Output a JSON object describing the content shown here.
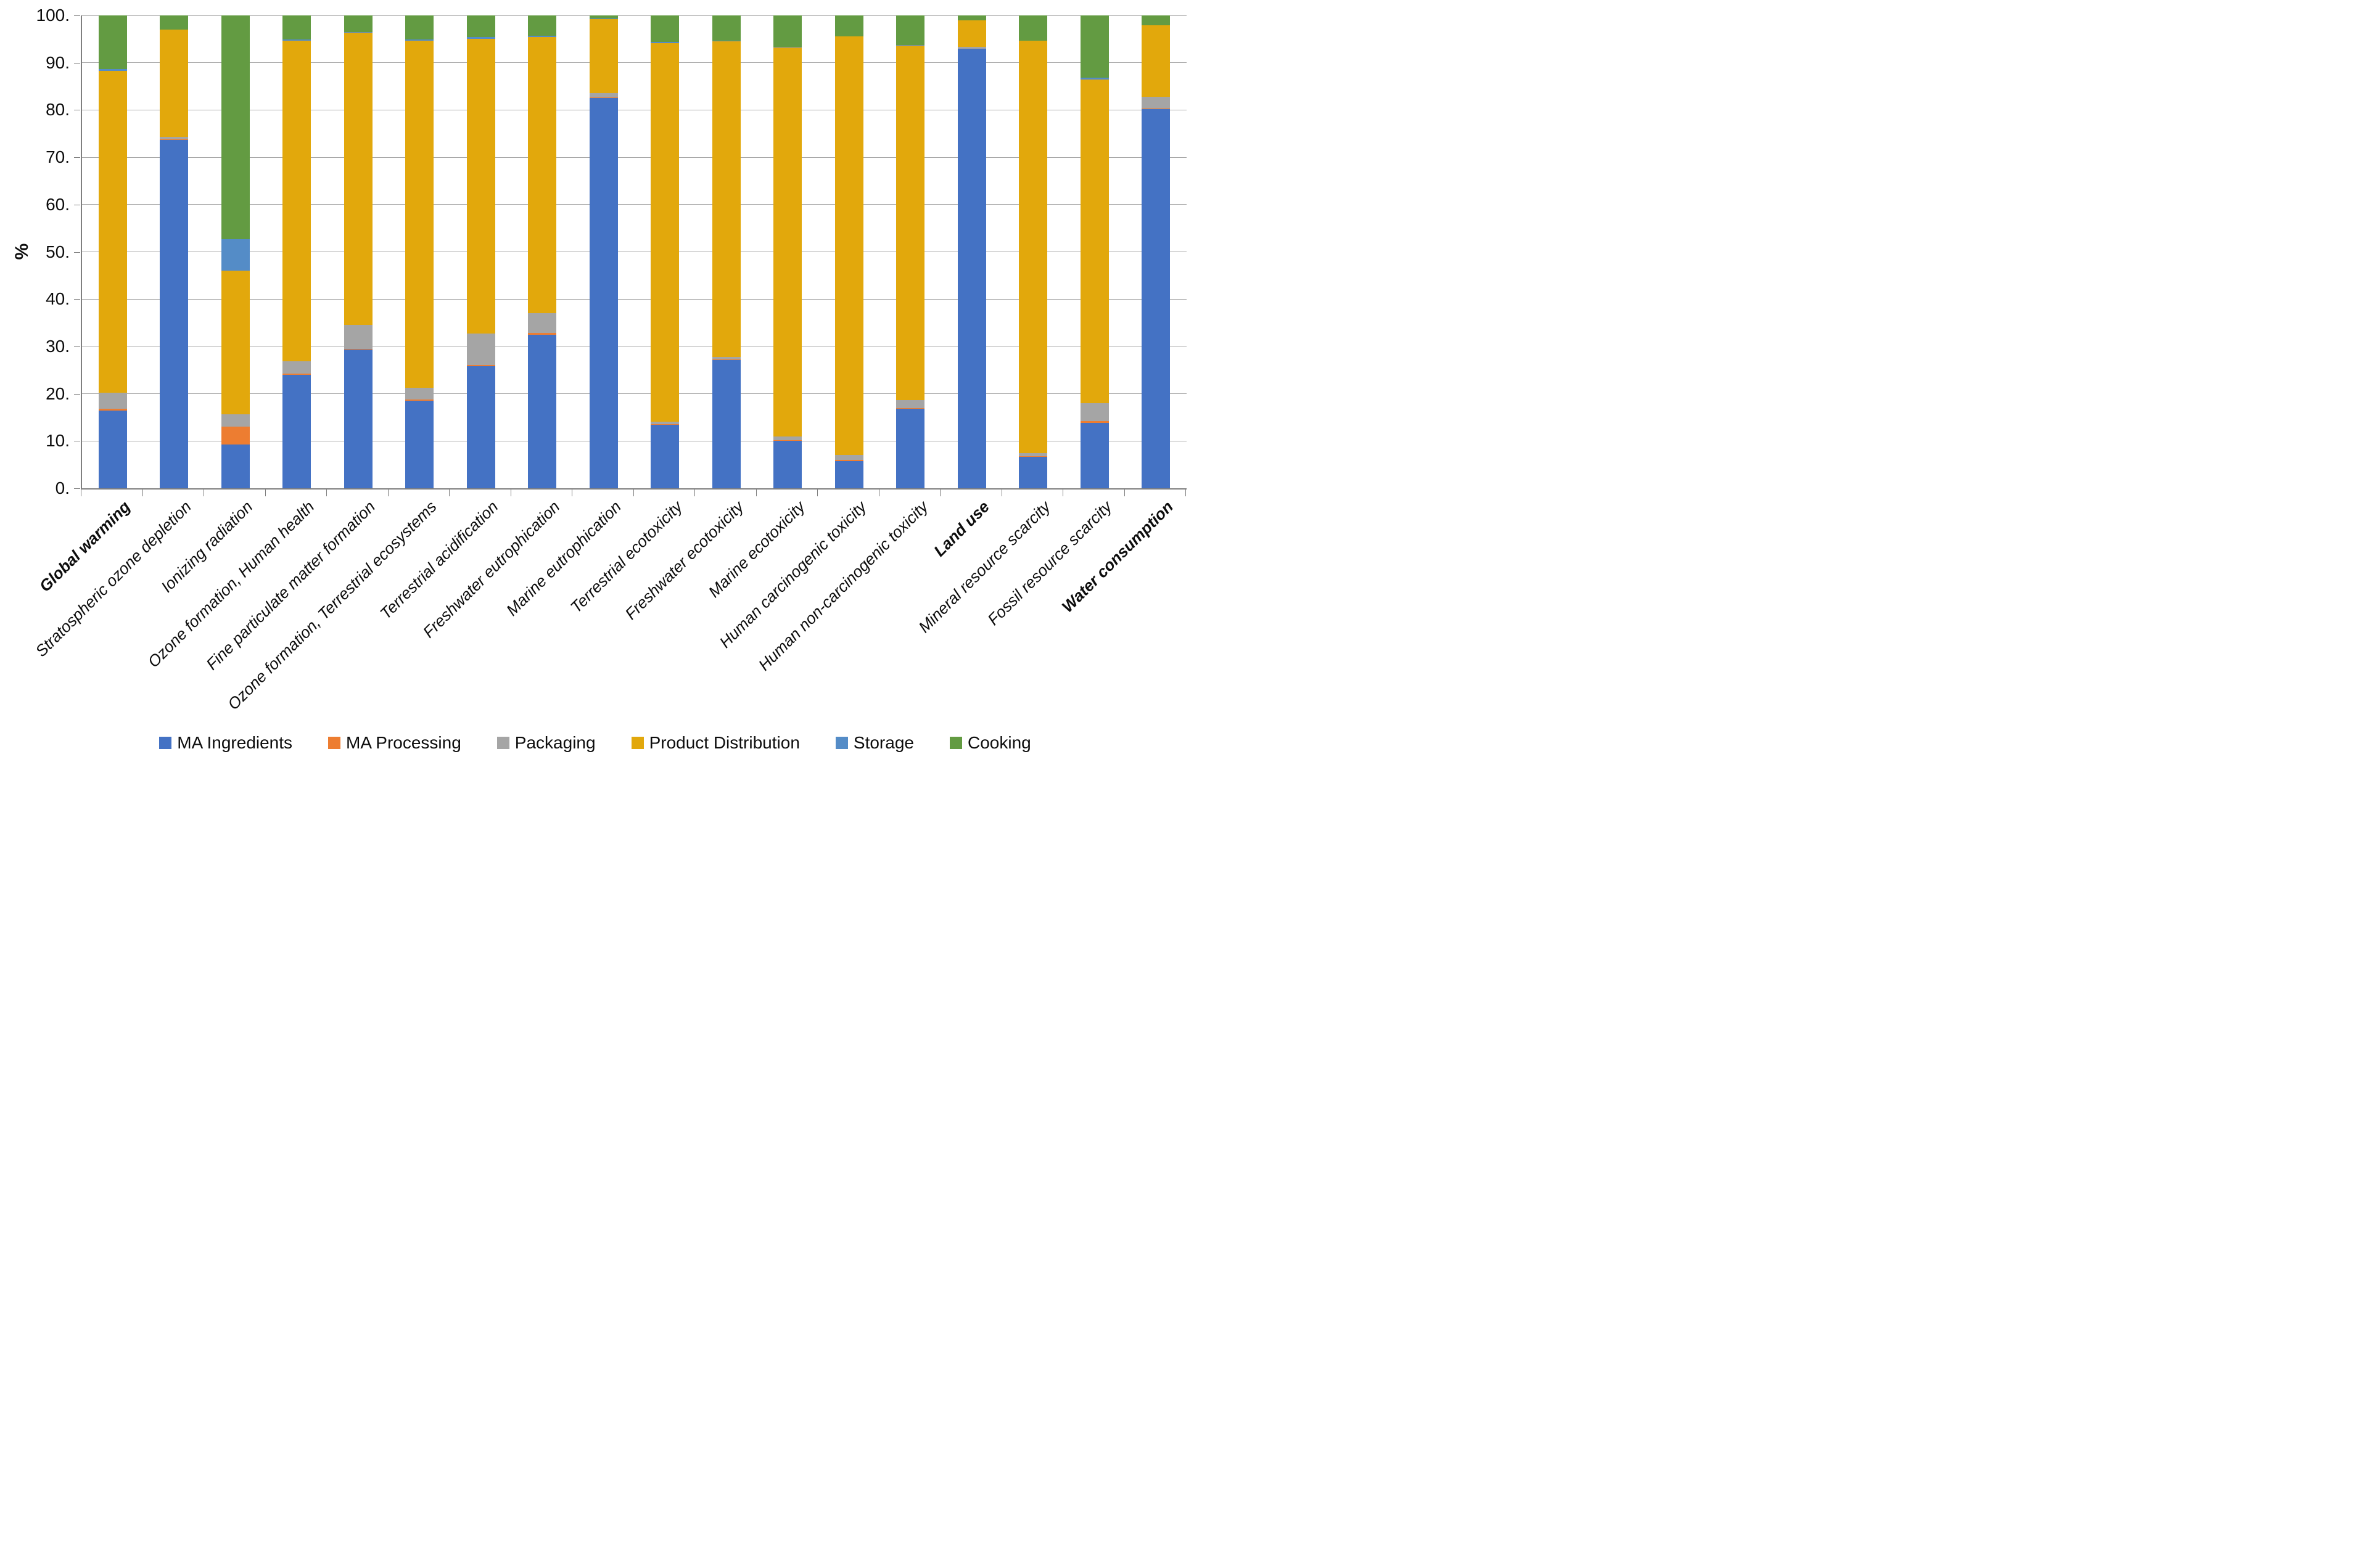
{
  "chart_data": {
    "type": "bar",
    "subtype": "stacked-100-percent",
    "title": "",
    "xlabel": "",
    "ylabel": "%",
    "ylim": [
      0,
      100
    ],
    "ytick_step": 10,
    "ytick_labels": [
      "0.",
      "10.",
      "20.",
      "30.",
      "40.",
      "50.",
      "60.",
      "70.",
      "80.",
      "90.",
      "100."
    ],
    "grid": true,
    "legend_position": "bottom",
    "categories": [
      {
        "label": "Global warming",
        "bold": true
      },
      {
        "label": "Stratospheric ozone depletion",
        "bold": false
      },
      {
        "label": "Ionizing radiation",
        "bold": false
      },
      {
        "label": "Ozone formation, Human health",
        "bold": false
      },
      {
        "label": "Fine particulate matter formation",
        "bold": false
      },
      {
        "label": "Ozone formation, Terrestrial ecosystems",
        "bold": false
      },
      {
        "label": "Terrestrial acidification",
        "bold": false
      },
      {
        "label": "Freshwater eutrophication",
        "bold": false
      },
      {
        "label": "Marine eutrophication",
        "bold": false
      },
      {
        "label": "Terrestrial ecotoxicity",
        "bold": false
      },
      {
        "label": "Freshwater ecotoxicity",
        "bold": false
      },
      {
        "label": "Marine ecotoxicity",
        "bold": false
      },
      {
        "label": "Human carcinogenic toxicity",
        "bold": false
      },
      {
        "label": "Human non-carcinogenic toxicity",
        "bold": false
      },
      {
        "label": "Land use",
        "bold": true
      },
      {
        "label": "Mineral resource scarcity",
        "bold": false
      },
      {
        "label": "Fossil resource scarcity",
        "bold": false
      },
      {
        "label": "Water consumption",
        "bold": true
      }
    ],
    "series": [
      {
        "name": "MA Ingredients",
        "color": "#4472C4",
        "values": [
          16.4,
          73.7,
          9.2,
          24.0,
          29.3,
          18.5,
          25.8,
          32.5,
          82.5,
          13.4,
          27.1,
          10.1,
          5.7,
          16.8,
          93.0,
          6.7,
          13.8,
          80.2
        ]
      },
      {
        "name": "MA Processing",
        "color": "#ED7D31",
        "values": [
          0.4,
          0.1,
          3.8,
          0.2,
          0.2,
          0.3,
          0.3,
          0.3,
          0.1,
          0.1,
          0.1,
          0.1,
          0.3,
          0.2,
          0.0,
          0.1,
          0.4,
          0.1
        ]
      },
      {
        "name": "Packaging",
        "color": "#A5A5A5",
        "values": [
          3.4,
          0.5,
          2.6,
          2.7,
          5.1,
          2.4,
          6.6,
          4.2,
          1.0,
          0.6,
          0.6,
          0.7,
          1.0,
          1.6,
          0.3,
          0.6,
          3.8,
          2.5
        ]
      },
      {
        "name": "Product Distribution",
        "color": "#E2A80C",
        "values": [
          68.1,
          22.7,
          30.4,
          67.7,
          61.7,
          73.4,
          62.4,
          58.5,
          15.7,
          80.1,
          66.7,
          82.4,
          88.6,
          75.1,
          5.6,
          87.2,
          68.5,
          15.1
        ]
      },
      {
        "name": "Storage",
        "color": "#548CC7",
        "values": [
          0.3,
          0.0,
          6.7,
          0.3,
          0.2,
          0.3,
          0.3,
          0.2,
          0.1,
          0.2,
          0.1,
          0.1,
          0.0,
          0.1,
          0.0,
          0.0,
          0.3,
          0.0
        ]
      },
      {
        "name": "Cooking",
        "color": "#639B42",
        "values": [
          11.4,
          3.0,
          47.3,
          5.1,
          3.5,
          5.1,
          4.6,
          4.3,
          0.6,
          5.6,
          5.4,
          6.6,
          4.4,
          6.2,
          1.1,
          5.4,
          13.2,
          2.1
        ]
      }
    ]
  }
}
